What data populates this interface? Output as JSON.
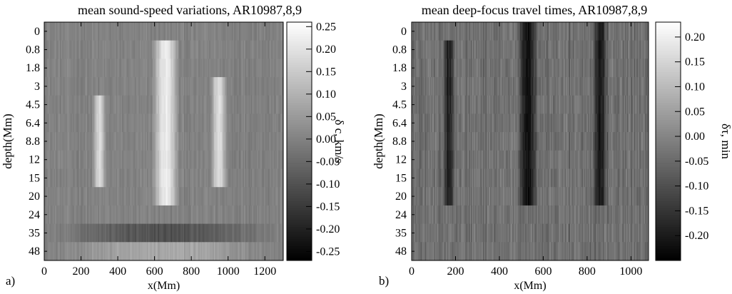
{
  "chart_data": [
    {
      "type": "heatmap",
      "panel_label": "a)",
      "title": "mean sound-speed variations, AR10987,8,9",
      "xlabel": "x(Mm)",
      "ylabel": "depth(Mm)",
      "xlim": [
        0,
        1300
      ],
      "x_ticks": [
        0,
        200,
        400,
        600,
        800,
        1000,
        1200
      ],
      "depth_labels": [
        "0",
        "0.8",
        "1.8",
        "3",
        "4.5",
        "6.4",
        "8.8",
        "12",
        "15",
        "20",
        "24",
        "35",
        "48"
      ],
      "colorbar": {
        "label": "δ c, km/s",
        "range": [
          -0.27,
          0.26
        ],
        "ticks": [
          "0.25",
          "0.20",
          "0.15",
          "0.10",
          "0.05",
          "0.00",
          "-0.05",
          "-0.10",
          "-0.15",
          "-0.20",
          "-0.25"
        ],
        "colormap": "grayscale"
      },
      "features": [
        {
          "x_range": [
            260,
            340
          ],
          "depth_rows": [
            4,
            8
          ],
          "value": 0.18
        },
        {
          "x_range": [
            580,
            740
          ],
          "depth_rows": [
            1,
            9
          ],
          "value": 0.22
        },
        {
          "x_range": [
            900,
            1000
          ],
          "depth_rows": [
            3,
            8
          ],
          "value": 0.19
        },
        {
          "x_range": [
            0,
            1300
          ],
          "depth_rows": [
            11,
            11
          ],
          "value": -0.1
        },
        {
          "x_range": [
            0,
            1300
          ],
          "depth_rows": [
            12,
            12
          ],
          "value": 0.08
        }
      ],
      "background": 0.0
    },
    {
      "type": "heatmap",
      "panel_label": "b)",
      "title": "mean deep-focus travel times, AR10987,8,9",
      "xlabel": "x(Mm)",
      "ylabel": "depth(Mm)",
      "xlim": [
        0,
        1080
      ],
      "x_ticks": [
        0,
        200,
        400,
        600,
        800,
        1000
      ],
      "depth_labels": [
        "0",
        "0.8",
        "1.8",
        "3",
        "4.5",
        "6.4",
        "8.8",
        "12",
        "15",
        "20",
        "24",
        "35",
        "48"
      ],
      "colorbar": {
        "label": "δτ, min",
        "range": [
          -0.25,
          0.23
        ],
        "ticks": [
          "0.20",
          "0.15",
          "0.10",
          "0.05",
          "0.00",
          "-0.05",
          "-0.10",
          "-0.15",
          "-0.20"
        ],
        "colormap": "grayscale"
      },
      "features": [
        {
          "x_range": [
            140,
            200
          ],
          "depth_rows": [
            1,
            9
          ],
          "value": -0.2
        },
        {
          "x_range": [
            480,
            580
          ],
          "depth_rows": [
            0,
            9
          ],
          "value": -0.22
        },
        {
          "x_range": [
            820,
            900
          ],
          "depth_rows": [
            0,
            9
          ],
          "value": -0.2
        }
      ],
      "background": -0.04
    }
  ]
}
